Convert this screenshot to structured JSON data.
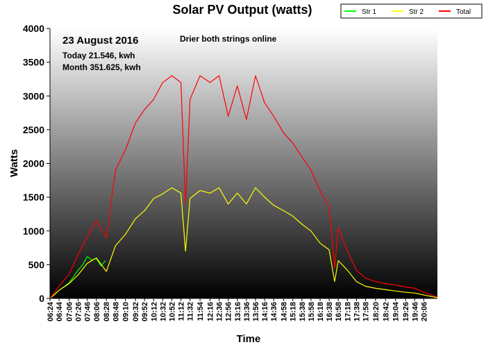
{
  "chart_data": {
    "type": "line",
    "title": "Solar PV Output (watts)",
    "xlabel": "Time",
    "ylabel": "Watts",
    "ylim": [
      0,
      4000
    ],
    "yticks": [
      0,
      500,
      1000,
      1500,
      2000,
      2500,
      3000,
      3500,
      4000
    ],
    "xlim": [
      "06:24",
      "20:36"
    ],
    "xtick_labels": [
      "06:24",
      "06:44",
      "07:06",
      "07:26",
      "07:46",
      "08:06",
      "08:28",
      "08:48",
      "09:10",
      "09:32",
      "09:52",
      "10:12",
      "10:32",
      "10:52",
      "11:12",
      "11:32",
      "11:54",
      "12:16",
      "12:36",
      "12:56",
      "13:16",
      "13:36",
      "13:56",
      "14:16",
      "14:36",
      "14:58",
      "15:18",
      "15:38",
      "15:58",
      "16:18",
      "16:38",
      "16:58",
      "17:18",
      "17:38",
      "17:58",
      "18:20",
      "18:42",
      "19:04",
      "19:26",
      "19:46",
      "20:06"
    ],
    "legend": {
      "position": "top-right",
      "entries": [
        "Str 1",
        "Str 2",
        "Total"
      ]
    },
    "date": "23 August 2016",
    "today_text": "Today 21.546, kwh",
    "month_text": "Month 351.625, kwh",
    "annotation": "Drier both strings online",
    "series": [
      {
        "name": "Str 1",
        "color": "#00ff00",
        "x": [
          "06:24",
          "06:44",
          "07:06",
          "07:26",
          "07:36",
          "07:46",
          "07:56",
          "08:06",
          "08:16",
          "08:26"
        ],
        "values": [
          0,
          120,
          230,
          420,
          500,
          620,
          570,
          590,
          480,
          560
        ]
      },
      {
        "name": "Str 2",
        "color": "#ffff00",
        "x": [
          "06:24",
          "06:44",
          "07:06",
          "07:26",
          "07:46",
          "08:06",
          "08:28",
          "08:48",
          "09:10",
          "09:32",
          "09:52",
          "10:12",
          "10:32",
          "10:52",
          "11:12",
          "11:22",
          "11:32",
          "11:54",
          "12:16",
          "12:36",
          "12:56",
          "13:16",
          "13:36",
          "13:56",
          "14:16",
          "14:36",
          "14:58",
          "15:18",
          "15:38",
          "15:58",
          "16:18",
          "16:38",
          "16:50",
          "16:58",
          "17:18",
          "17:38",
          "17:58",
          "18:20",
          "18:42",
          "19:04",
          "19:26",
          "19:46",
          "20:06",
          "20:36"
        ],
        "values": [
          0,
          120,
          220,
          350,
          520,
          600,
          400,
          780,
          950,
          1180,
          1300,
          1480,
          1550,
          1640,
          1560,
          700,
          1480,
          1600,
          1560,
          1640,
          1400,
          1560,
          1400,
          1640,
          1500,
          1380,
          1300,
          1220,
          1100,
          1000,
          820,
          720,
          250,
          560,
          420,
          250,
          180,
          150,
          130,
          110,
          90,
          80,
          50,
          10
        ]
      },
      {
        "name": "Total",
        "color": "#ff0000",
        "x": [
          "06:24",
          "06:44",
          "07:06",
          "07:26",
          "07:46",
          "08:06",
          "08:28",
          "08:48",
          "09:10",
          "09:32",
          "09:52",
          "10:12",
          "10:32",
          "10:52",
          "11:12",
          "11:22",
          "11:32",
          "11:54",
          "12:16",
          "12:36",
          "12:56",
          "13:16",
          "13:36",
          "13:56",
          "14:16",
          "14:36",
          "14:58",
          "15:18",
          "15:38",
          "15:58",
          "16:18",
          "16:38",
          "16:50",
          "16:58",
          "17:18",
          "17:38",
          "17:58",
          "18:20",
          "18:42",
          "19:04",
          "19:26",
          "19:46",
          "20:06",
          "20:36"
        ],
        "values": [
          0,
          180,
          360,
          650,
          920,
          1150,
          900,
          1900,
          2200,
          2600,
          2800,
          2950,
          3200,
          3300,
          3200,
          1400,
          2950,
          3300,
          3200,
          3300,
          2700,
          3150,
          2650,
          3300,
          2900,
          2700,
          2450,
          2300,
          2100,
          1900,
          1600,
          1350,
          450,
          1050,
          700,
          420,
          300,
          250,
          220,
          200,
          170,
          150,
          90,
          20
        ]
      }
    ]
  }
}
